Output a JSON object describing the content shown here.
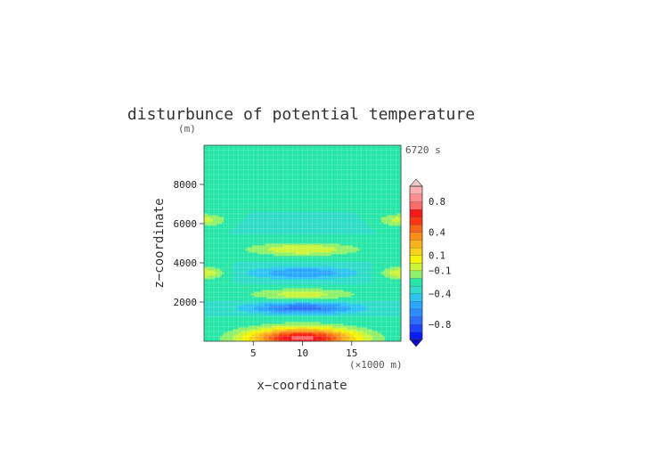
{
  "chart_data": {
    "type": "heatmap",
    "title": "disturbunce of potential temperature",
    "xlabel": "x−coordinate",
    "ylabel": "z−coordinate",
    "x_unit": "(×1000 m)",
    "y_unit": "(m)",
    "time_label": "6720 s",
    "xlim": [
      0,
      20
    ],
    "ylim": [
      0,
      10000
    ],
    "x_ticks": [
      5,
      10,
      15
    ],
    "x_tick_labels": [
      "5",
      "10",
      "15"
    ],
    "y_ticks": [
      2000,
      4000,
      6000,
      8000
    ],
    "y_tick_labels": [
      "2000",
      "4000",
      "6000",
      "8000"
    ],
    "grid": true,
    "colorbar": {
      "levels": [
        -1.0,
        -0.9,
        -0.8,
        -0.7,
        -0.6,
        -0.5,
        -0.4,
        -0.3,
        -0.2,
        -0.1,
        0,
        0.1,
        0.2,
        0.3,
        0.4,
        0.5,
        0.6,
        0.7,
        0.8,
        0.9,
        1.0
      ],
      "colors": [
        "#0a1cf5",
        "#1b45ff",
        "#2a6dff",
        "#2d8cff",
        "#2aa7ff",
        "#2ec5f0",
        "#2fdcc8",
        "#27e6a8",
        "#8ef06b",
        "#ccf53a",
        "#f4f400",
        "#f7d21a",
        "#f9b21c",
        "#fa8c1a",
        "#fb6418",
        "#fb3512",
        "#f51818",
        "#fc6a6a",
        "#fd8f8f",
        "#fdb0b0"
      ],
      "under_color": "#0a0ac8",
      "over_color": "#f5c9c9",
      "tick_values": [
        0.8,
        0.4,
        0.1,
        -0.1,
        -0.4,
        -0.8
      ],
      "tick_labels": [
        "0.8",
        "0.4",
        "0.1",
        "−0.1",
        "−0.4",
        "−0.8"
      ]
    },
    "field_estimate": {
      "background": -0.3,
      "features": [
        {
          "x": 10,
          "z": 100,
          "amp": 0.9
        },
        {
          "x": 10,
          "z": 500,
          "amp": 0.45
        },
        {
          "x": 10,
          "z": 1200,
          "amp": 0.05
        },
        {
          "x": 10,
          "z": 1700,
          "amp": -0.45
        },
        {
          "x": 10,
          "z": 2400,
          "amp": 0.25
        },
        {
          "x": 10,
          "z": 3500,
          "amp": -0.3
        },
        {
          "x": 10,
          "z": 4700,
          "amp": 0.3
        },
        {
          "x": 10,
          "z": 6000,
          "amp": -0.05
        },
        {
          "x": 10,
          "z": 8500,
          "amp": 0.05
        },
        {
          "x": 0,
          "z": 3500,
          "amp": 0.3
        },
        {
          "x": 20,
          "z": 3500,
          "amp": 0.3
        },
        {
          "x": 0,
          "z": 6200,
          "amp": 0.25
        },
        {
          "x": 20,
          "z": 6200,
          "amp": 0.25
        }
      ]
    }
  }
}
